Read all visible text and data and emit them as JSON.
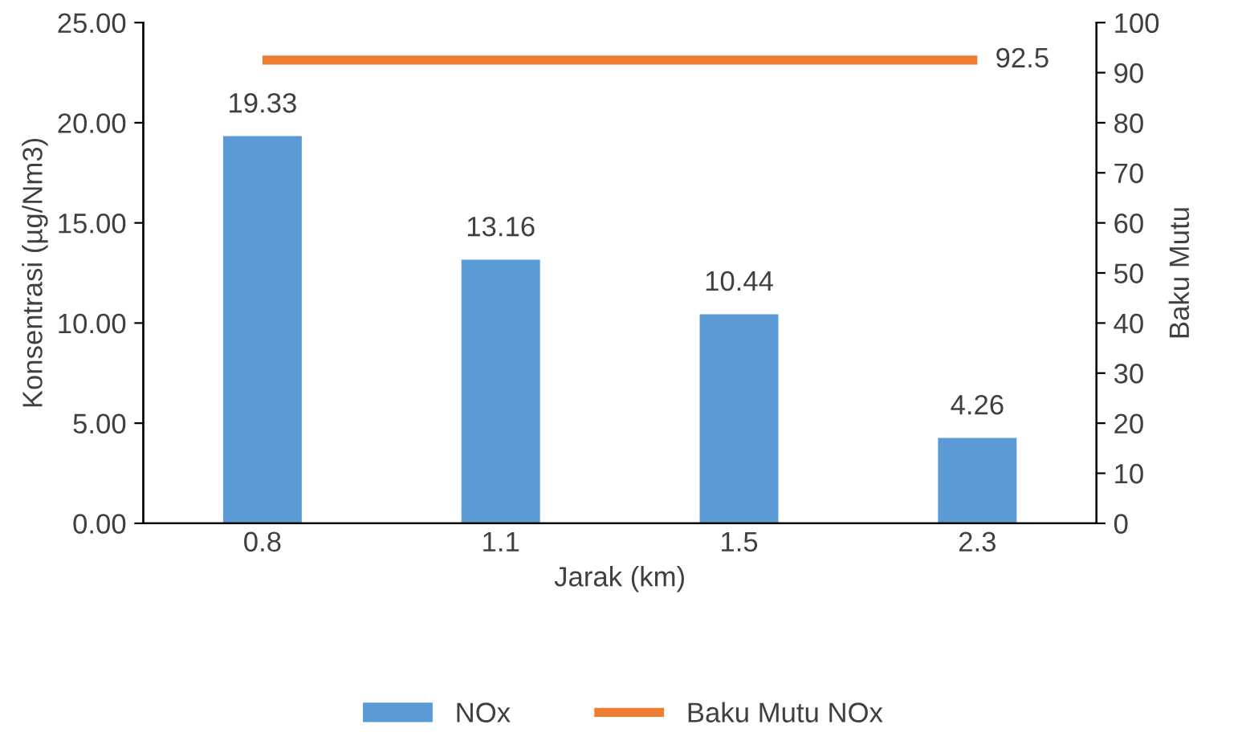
{
  "chart_data": {
    "type": "bar",
    "xlabel": "Jarak (km)",
    "ylabel": "Konsentrasi (µg/Nm3)",
    "y2label": "Baku Mutu",
    "categories": [
      "0.8",
      "1.1",
      "1.5",
      "2.3"
    ],
    "series": [
      {
        "name": "NOx",
        "color": "#5b9bd5",
        "values": [
          19.33,
          13.16,
          10.44,
          4.26
        ],
        "value_labels": [
          "19.33",
          "13.16",
          "10.44",
          "4.26"
        ]
      },
      {
        "name": "Baku Mutu NOx",
        "type": "line",
        "axis": "y2",
        "color": "#ed7d31",
        "values": [
          92.5,
          92.5,
          92.5,
          92.5
        ],
        "value_labels": [
          null,
          null,
          null,
          "92.5"
        ]
      }
    ],
    "ylim": [
      0,
      25
    ],
    "yticks": [
      {
        "value": 0,
        "label": "0.00"
      },
      {
        "value": 5,
        "label": "5.00"
      },
      {
        "value": 10,
        "label": "10.00"
      },
      {
        "value": 15,
        "label": "15.00"
      },
      {
        "value": 20,
        "label": "20.00"
      },
      {
        "value": 25,
        "label": "25.00"
      }
    ],
    "y2lim": [
      0,
      100
    ],
    "y2ticks": [
      0,
      10,
      20,
      30,
      40,
      50,
      60,
      70,
      80,
      90,
      100
    ],
    "grid": false,
    "legend": "bottom",
    "marker": "none"
  }
}
